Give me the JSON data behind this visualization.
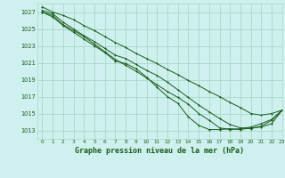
{
  "title": "Graphe pression niveau de la mer (hPa)",
  "background_color": "#cef0ee",
  "grid_color": "#aad8cc",
  "line_color": "#1a5c1a",
  "text_color": "#1a5c1a",
  "xlim": [
    -0.5,
    23
  ],
  "ylim": [
    1012.0,
    1028.0
  ],
  "xticks": [
    0,
    1,
    2,
    3,
    4,
    5,
    6,
    7,
    8,
    9,
    10,
    11,
    12,
    13,
    14,
    15,
    16,
    17,
    18,
    19,
    20,
    21,
    22,
    23
  ],
  "yticks": [
    1013,
    1015,
    1017,
    1019,
    1021,
    1023,
    1025,
    1027
  ],
  "line1": [
    1027.6,
    1027.0,
    1026.6,
    1026.1,
    1025.4,
    1024.8,
    1024.1,
    1023.4,
    1022.8,
    1022.1,
    1021.5,
    1020.9,
    1020.2,
    1019.6,
    1018.9,
    1018.3,
    1017.6,
    1017.0,
    1016.3,
    1015.7,
    1015.0,
    1014.8,
    1015.0,
    1015.4
  ],
  "line2": [
    1027.2,
    1026.8,
    1025.8,
    1025.0,
    1024.2,
    1023.5,
    1022.7,
    1021.9,
    1021.5,
    1020.8,
    1020.1,
    1019.5,
    1018.7,
    1017.8,
    1016.9,
    1016.0,
    1015.2,
    1014.4,
    1013.7,
    1013.3,
    1013.2,
    1013.5,
    1014.2,
    1015.4
  ],
  "line3": [
    1027.0,
    1026.6,
    1025.5,
    1024.8,
    1024.1,
    1023.2,
    1022.3,
    1021.4,
    1020.7,
    1020.0,
    1019.2,
    1018.4,
    1017.6,
    1016.9,
    1016.1,
    1015.0,
    1014.2,
    1013.3,
    1013.1,
    1013.2,
    1013.4,
    1013.8,
    1014.3,
    1015.4
  ],
  "line4": [
    1027.0,
    1026.4,
    1025.4,
    1024.6,
    1023.8,
    1023.0,
    1022.2,
    1021.2,
    1020.9,
    1020.3,
    1019.3,
    1018.1,
    1017.0,
    1016.2,
    1014.6,
    1013.6,
    1013.1,
    1013.1,
    1013.2,
    1013.1,
    1013.3,
    1013.4,
    1013.8,
    1015.4
  ]
}
